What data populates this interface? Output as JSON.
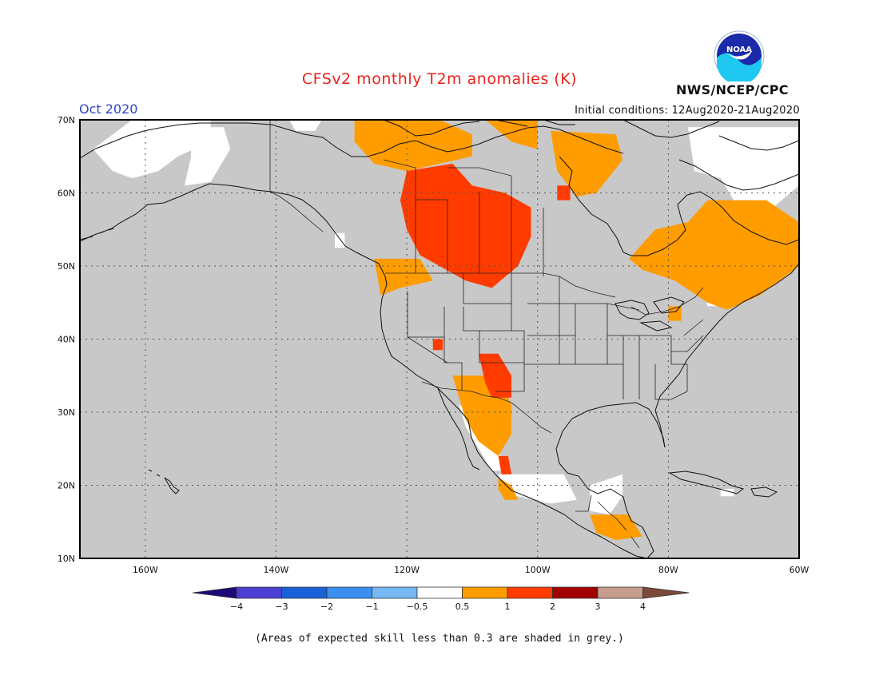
{
  "header": {
    "title": "CFSv2 monthly T2m anomalies (K)",
    "month": "Oct 2020",
    "initial_conditions": "Initial conditions: 12Aug2020-21Aug2020",
    "agency": "NWS/NCEP/CPC",
    "logo_text": "NOAA"
  },
  "map": {
    "lon_range": [
      -170,
      -60
    ],
    "lat_range": [
      10,
      70
    ],
    "lat_labels": [
      "70N",
      "60N",
      "50N",
      "40N",
      "30N",
      "20N",
      "10N"
    ],
    "lon_labels": [
      "160W",
      "140W",
      "120W",
      "100W",
      "80W",
      "60W"
    ],
    "background_color": "#c8c8c8"
  },
  "colorbar": {
    "labels": [
      "−4",
      "−3",
      "−2",
      "−1",
      "−0.5",
      "0.5",
      "1",
      "2",
      "3",
      "4"
    ],
    "colors": [
      "#1d0a78",
      "#4a3fd0",
      "#1a60d6",
      "#3b8ff0",
      "#76b7f4",
      "#ffffff",
      "#ff9c00",
      "#ff3b00",
      "#a00000",
      "#c69c8c",
      "#7d4a3a"
    ]
  },
  "footnote": "(Areas of expected skill less than 0.3 are shaded in grey.)",
  "anomaly_regions": [
    {
      "name": "white-alaska-north",
      "color": "#ffffff",
      "points": [
        [
          -162,
          70
        ],
        [
          -150,
          70
        ],
        [
          -150,
          67
        ],
        [
          -155,
          65
        ],
        [
          -158,
          63
        ],
        [
          -162,
          62
        ],
        [
          -165,
          63
        ],
        [
          -168,
          66
        ]
      ]
    },
    {
      "name": "white-alaska-central",
      "color": "#ffffff",
      "points": [
        [
          -153,
          69
        ],
        [
          -148,
          69
        ],
        [
          -147,
          66
        ],
        [
          -150,
          61.5
        ],
        [
          -154,
          61
        ],
        [
          -153,
          65
        ]
      ]
    },
    {
      "name": "white-canada-north",
      "color": "#ffffff",
      "points": [
        [
          -138,
          70
        ],
        [
          -133,
          70
        ],
        [
          -134,
          68.5
        ],
        [
          -137,
          68.5
        ]
      ]
    },
    {
      "name": "white-nwt",
      "color": "#ffffff",
      "points": [
        [
          -128,
          69
        ],
        [
          -122,
          69
        ],
        [
          -122,
          67.5
        ],
        [
          -126,
          67.5
        ]
      ]
    },
    {
      "name": "white-hudson-east",
      "color": "#ffffff",
      "points": [
        [
          -77,
          69
        ],
        [
          -60,
          69
        ],
        [
          -60,
          61
        ],
        [
          -64,
          58
        ],
        [
          -70,
          59
        ],
        [
          -72,
          62
        ],
        [
          -76,
          63
        ]
      ]
    },
    {
      "name": "white-bc",
      "color": "#ffffff",
      "points": [
        [
          -131,
          54.5
        ],
        [
          -129.5,
          54.5
        ],
        [
          -129.5,
          52.5
        ],
        [
          -131,
          52.5
        ]
      ]
    },
    {
      "name": "white-mexico-west",
      "color": "#ffffff",
      "points": [
        [
          -112,
          31
        ],
        [
          -109,
          30
        ],
        [
          -106.5,
          26
        ],
        [
          -105,
          22
        ],
        [
          -107,
          22
        ],
        [
          -109,
          25
        ],
        [
          -111,
          28
        ]
      ]
    },
    {
      "name": "white-mexico-south",
      "color": "#ffffff",
      "points": [
        [
          -106,
          21.5
        ],
        [
          -96,
          21.5
        ],
        [
          -94,
          18
        ],
        [
          -98,
          17.5
        ],
        [
          -103,
          18.5
        ],
        [
          -105,
          19.5
        ]
      ]
    },
    {
      "name": "white-yucatan",
      "color": "#ffffff",
      "points": [
        [
          -92,
          20
        ],
        [
          -87,
          21.5
        ],
        [
          -87,
          18.5
        ],
        [
          -89,
          16
        ],
        [
          -92,
          16.5
        ]
      ]
    },
    {
      "name": "white-caribbean",
      "color": "#ffffff",
      "points": [
        [
          -72,
          19.5
        ],
        [
          -70,
          19.5
        ],
        [
          -70,
          18.5
        ],
        [
          -72,
          18.5
        ]
      ]
    },
    {
      "name": "white-nova-scotia",
      "color": "#ffffff",
      "points": [
        [
          -75,
          48
        ],
        [
          -71,
          48
        ],
        [
          -71,
          44.5
        ],
        [
          -74,
          44.5
        ]
      ]
    },
    {
      "name": "orange-canada-north",
      "color": "#ff9c00",
      "points": [
        [
          -128,
          70
        ],
        [
          -115,
          70
        ],
        [
          -110,
          68
        ],
        [
          -110,
          65
        ],
        [
          -120,
          63
        ],
        [
          -125,
          64
        ],
        [
          -128,
          67
        ]
      ]
    },
    {
      "name": "orange-nunavut",
      "color": "#ff9c00",
      "points": [
        [
          -108,
          70
        ],
        [
          -100,
          70
        ],
        [
          -100,
          66
        ],
        [
          -104,
          67
        ]
      ]
    },
    {
      "name": "orange-hudson-west",
      "color": "#ff9c00",
      "points": [
        [
          -98,
          68.5
        ],
        [
          -88,
          68
        ],
        [
          -87,
          64.5
        ],
        [
          -91,
          60
        ],
        [
          -94,
          59.5
        ],
        [
          -97,
          63
        ]
      ]
    },
    {
      "name": "orange-quebec-labrador",
      "color": "#ff9c00",
      "points": [
        [
          -82,
          55
        ],
        [
          -77,
          56
        ],
        [
          -74,
          59
        ],
        [
          -65,
          59
        ],
        [
          -60,
          56
        ],
        [
          -60,
          50
        ],
        [
          -66,
          46
        ],
        [
          -71,
          44
        ],
        [
          -74,
          45
        ],
        [
          -79,
          48
        ],
        [
          -84,
          49.5
        ],
        [
          -86,
          51
        ]
      ]
    },
    {
      "name": "orange-bc-north",
      "color": "#ff9c00",
      "points": [
        [
          -125,
          51
        ],
        [
          -118,
          51
        ],
        [
          -116,
          48
        ],
        [
          -121,
          47
        ],
        [
          -124,
          46
        ]
      ]
    },
    {
      "name": "orange-southwest",
      "color": "#ff9c00",
      "points": [
        [
          -113,
          35
        ],
        [
          -106,
          35
        ],
        [
          -104,
          31
        ],
        [
          -104,
          27
        ],
        [
          -106,
          24
        ],
        [
          -109,
          26
        ],
        [
          -111,
          29
        ],
        [
          -112,
          32
        ]
      ]
    },
    {
      "name": "orange-central-america",
      "color": "#ff9c00",
      "points": [
        [
          -92,
          16
        ],
        [
          -86,
          16
        ],
        [
          -84,
          13
        ],
        [
          -88,
          12.5
        ],
        [
          -91,
          13.5
        ]
      ]
    },
    {
      "name": "orange-great-lakes",
      "color": "#ff9c00",
      "points": [
        [
          -80,
          44.5
        ],
        [
          -78,
          44.5
        ],
        [
          -78,
          42.5
        ],
        [
          -80,
          42.5
        ]
      ]
    },
    {
      "name": "orange-mexico-west",
      "color": "#ff9c00",
      "points": [
        [
          -106,
          21
        ],
        [
          -104,
          20
        ],
        [
          -103,
          18
        ],
        [
          -105,
          18
        ],
        [
          -106,
          19.5
        ]
      ]
    },
    {
      "name": "red-prairies",
      "color": "#ff3b00",
      "points": [
        [
          -120,
          63
        ],
        [
          -113,
          64
        ],
        [
          -110,
          61
        ],
        [
          -105,
          60
        ],
        [
          -101,
          58
        ],
        [
          -101,
          54
        ],
        [
          -103,
          50
        ],
        [
          -107,
          47
        ],
        [
          -111,
          48
        ],
        [
          -115,
          50
        ],
        [
          -118,
          51.5
        ],
        [
          -120,
          55
        ],
        [
          -121,
          59
        ]
      ]
    },
    {
      "name": "red-hudson-west",
      "color": "#ff3b00",
      "points": [
        [
          -97,
          61
        ],
        [
          -95,
          61
        ],
        [
          -95,
          59
        ],
        [
          -97,
          59
        ]
      ]
    },
    {
      "name": "red-four-corners",
      "color": "#ff3b00",
      "points": [
        [
          -109,
          38
        ],
        [
          -106,
          38
        ],
        [
          -104,
          35
        ],
        [
          -104,
          32
        ],
        [
          -107,
          32
        ],
        [
          -108,
          34
        ]
      ]
    },
    {
      "name": "red-sinaloa",
      "color": "#ff3b00",
      "points": [
        [
          -106,
          24
        ],
        [
          -104.5,
          24
        ],
        [
          -104,
          21.5
        ],
        [
          -105.5,
          21.5
        ]
      ]
    },
    {
      "name": "red-nevada",
      "color": "#ff3b00",
      "points": [
        [
          -116,
          40
        ],
        [
          -114.5,
          40
        ],
        [
          -114.5,
          38.5
        ],
        [
          -116,
          38.5
        ]
      ]
    }
  ]
}
